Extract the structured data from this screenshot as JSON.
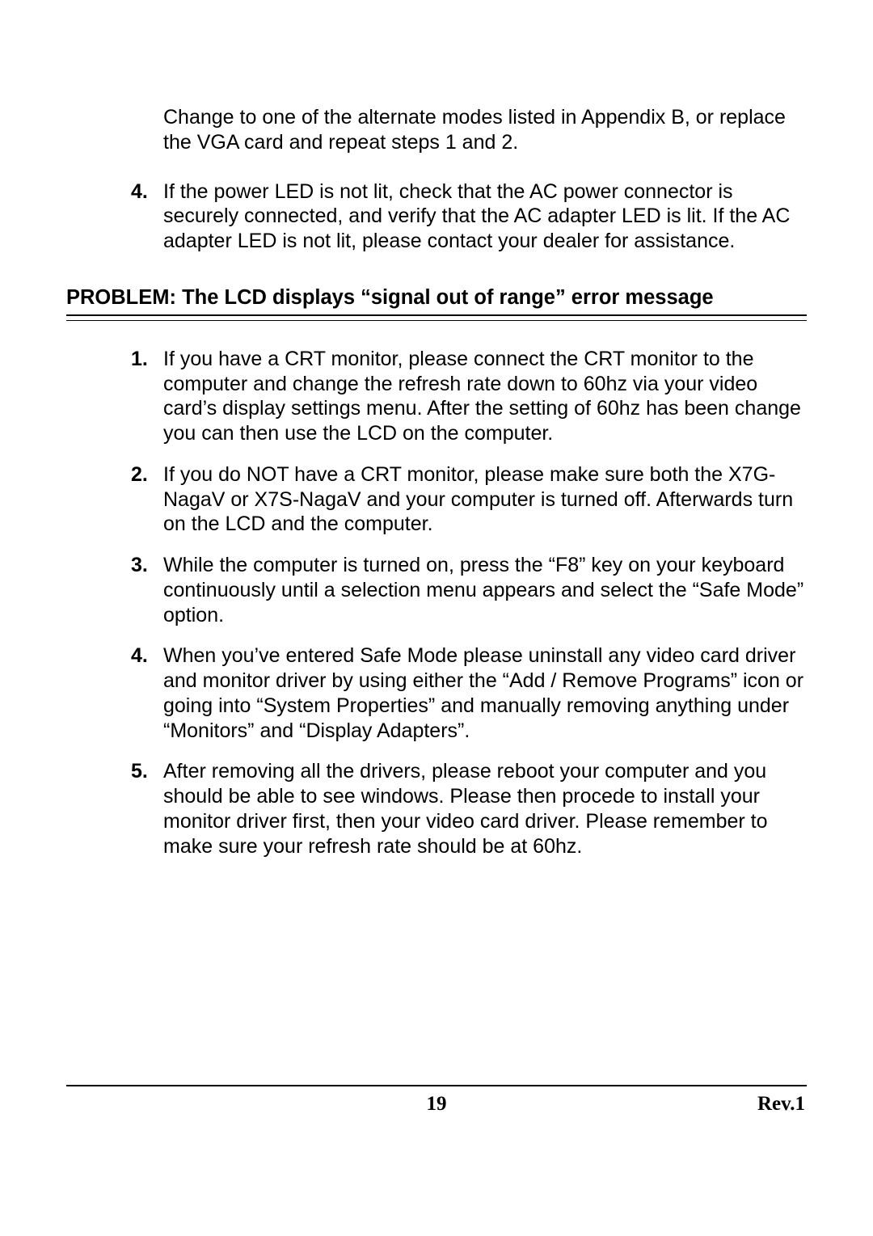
{
  "colors": {
    "text": "#000000",
    "background": "#ffffff",
    "rule": "#000000"
  },
  "typography": {
    "body_font": "Arial",
    "body_size_pt": 19,
    "footer_font": "Times New Roman",
    "footer_size_pt": 19,
    "heading_weight": "bold"
  },
  "top_section": {
    "continued_paragraph": "Change to one of the alternate modes listed in Appendix B, or replace the VGA card and repeat steps 1 and 2.",
    "list_start": 4,
    "items": [
      "If the power LED is not lit, check that the AC power connector is securely connected, and verify that the AC adapter LED is lit.  If the AC adapter LED is not lit, please contact your dealer for assistance."
    ]
  },
  "problem": {
    "heading": "PROBLEM: The LCD displays “signal out of range” error message",
    "list_start": 1,
    "items": [
      "If you have a CRT monitor, please connect the CRT monitor to the computer and change the refresh rate down to 60hz via your video card’s display settings menu.  After the setting of 60hz has been change you can then use the LCD on the computer.",
      "If you do NOT have a CRT monitor, please make sure both the X7G-NagaV or X7S-NagaV and your computer is turned off.  Afterwards turn on the LCD and the computer.",
      "While the computer is turned on, press the “F8” key on your keyboard continuously until a selection menu appears and select the “Safe Mode” option.",
      "When you’ve entered Safe Mode please uninstall any video card driver and monitor driver by using either the “Add / Remove Programs” icon or going into “System Properties” and manually removing anything under “Monitors” and “Display Adapters”.",
      "After removing all the drivers, please reboot your computer and you should be able to see windows.  Please then procede to install your monitor driver first, then your video card driver.  Please remember to make sure your refresh rate should be at 60hz."
    ]
  },
  "footer": {
    "page_number": "19",
    "revision": "Rev.1"
  }
}
